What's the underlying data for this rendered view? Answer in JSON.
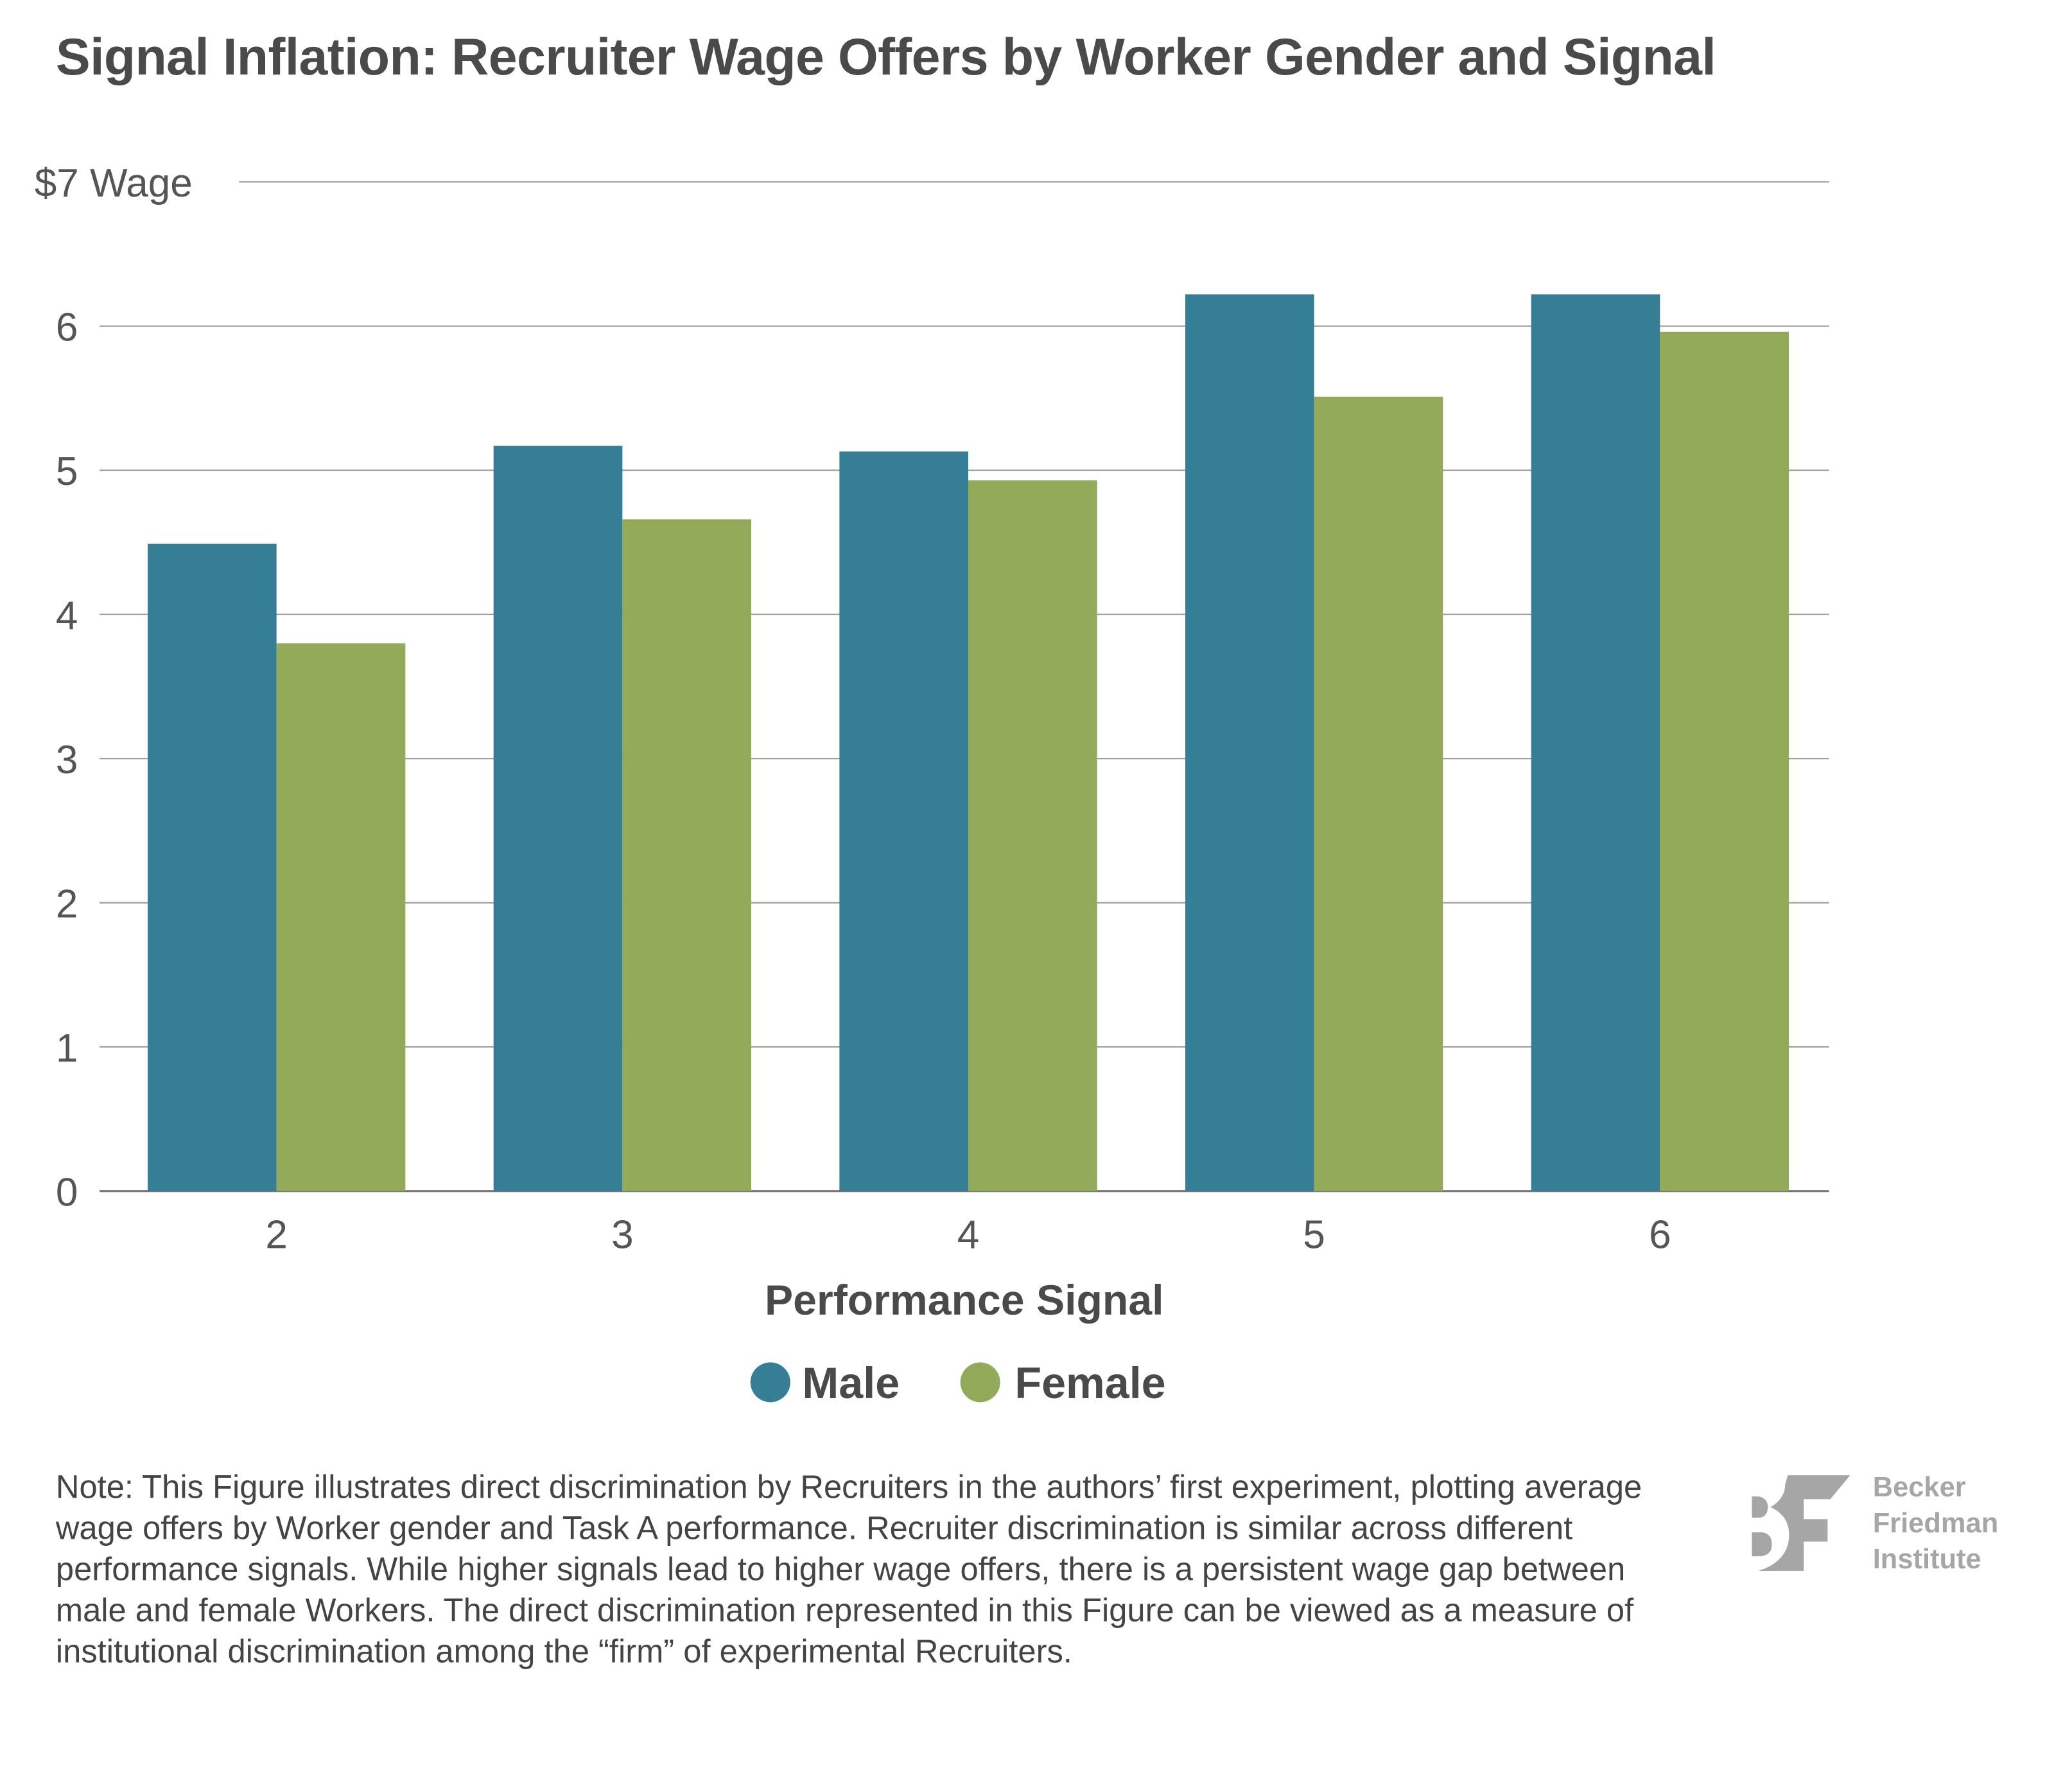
{
  "chart_data": {
    "type": "bar",
    "title": "Signal Inflation: Recruiter Wage Offers by Worker Gender and Signal",
    "xlabel": "Performance Signal",
    "ylabel": "",
    "categories": [
      "2",
      "3",
      "4",
      "5",
      "6"
    ],
    "series": [
      {
        "name": "Male",
        "color": "#367d96",
        "values": [
          4.49,
          5.17,
          5.13,
          6.22,
          6.22
        ]
      },
      {
        "name": "Female",
        "color": "#92aa5a",
        "values": [
          3.8,
          4.66,
          4.93,
          5.51,
          5.96
        ]
      }
    ],
    "ylim": [
      0,
      7
    ],
    "yticks": [
      "0",
      "1",
      "2",
      "3",
      "4",
      "5",
      "6",
      "$7 Wage"
    ],
    "grid": true,
    "legend": "bottom"
  },
  "note": "Note: This Figure illustrates direct discrimination by Recruiters in the authors’ first experiment, plotting average wage offers by Worker gender and Task A performance. Recruiter discrimination is similar across different performance signals. While higher signals lead to higher wage offers, there is a persistent wage gap between male and female Workers. The direct discrimination represented in this Figure can be viewed as a measure of institutional discrimination among the “firm” of experimental Recruiters.",
  "logo": {
    "lines": [
      "Becker",
      "Friedman",
      "Institute"
    ],
    "color": "#a6a6a6"
  }
}
